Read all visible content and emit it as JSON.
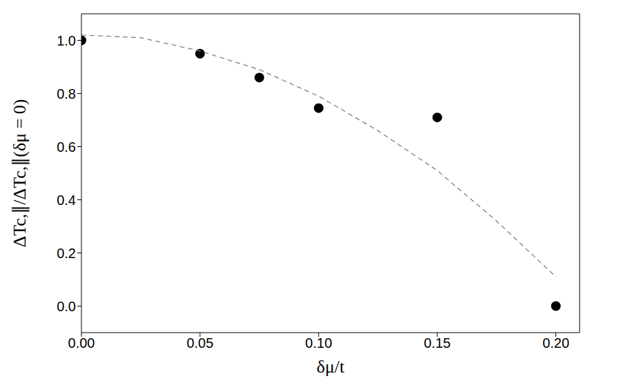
{
  "chart_data": {
    "type": "scatter",
    "x_label": "δμ/t",
    "y_label": "ΔTc,∥/ΔTc,∥(δμ = 0)",
    "xlim": [
      0,
      0.21
    ],
    "ylim": [
      -0.1,
      1.1
    ],
    "xticks": [
      {
        "value": 0,
        "label": "0.00"
      },
      0.05,
      {
        "value": 0.1,
        "label": "0.10"
      },
      0.15,
      {
        "value": 0.2,
        "label": "0.20"
      }
    ],
    "yticks": [
      {
        "value": 0,
        "label": "0.0"
      },
      0.2,
      0.4,
      0.6,
      0.8,
      {
        "value": 1,
        "label": "1.0"
      }
    ],
    "series": [
      {
        "type": "scatter",
        "color": "#000000",
        "marker": "circle",
        "x": [
          0,
          0.05,
          0.075,
          0.1,
          0.15,
          0.2
        ],
        "values": [
          1.0,
          0.95,
          0.86,
          0.745,
          0.71,
          0.0
        ]
      },
      {
        "type": "line",
        "color": "#808080",
        "line_style": "dashed",
        "marker": "none",
        "x": [
          0,
          0.025,
          0.05,
          0.075,
          0.1,
          0.125,
          0.15,
          0.175,
          0.2
        ],
        "values": [
          1.02,
          1.01,
          0.96,
          0.89,
          0.79,
          0.66,
          0.51,
          0.32,
          0.11
        ]
      }
    ]
  }
}
